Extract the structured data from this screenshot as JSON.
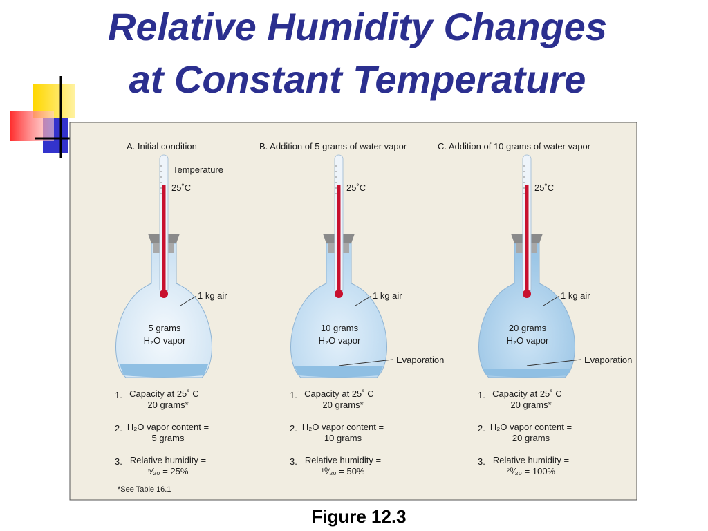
{
  "title": {
    "lines": [
      "Relative Humidity Changes",
      "at Constant Temperature"
    ]
  },
  "panels": [
    {
      "heading": "A. Initial condition",
      "thermometer_label": "Temperature",
      "temperature": "25˚C",
      "air": "1 kg air",
      "vapor": [
        "5 grams",
        "H₂O vapor"
      ],
      "steps": [
        {
          "number": "1.",
          "lines": [
            "Capacity at 25˚ C =",
            "20 grams*"
          ]
        },
        {
          "number": "2.",
          "lines": [
            "H₂O vapor content =",
            "5 grams"
          ]
        },
        {
          "number": "3.",
          "lines": [
            "Relative humidity =",
            "⁵⁄₂₀  = 25%"
          ]
        }
      ]
    },
    {
      "heading": "B. Addition of 5 grams of water vapor",
      "temperature": "25˚C",
      "air": "1 kg air",
      "vapor": [
        "10 grams",
        "H₂O vapor"
      ],
      "evaporation": "Evaporation",
      "steps": [
        {
          "number": "1.",
          "lines": [
            "Capacity at 25˚ C =",
            "20 grams*"
          ]
        },
        {
          "number": "2.",
          "lines": [
            "H₂O vapor content =",
            "10 grams"
          ]
        },
        {
          "number": "3.",
          "lines": [
            "Relative humidity =",
            "¹⁰⁄₂₀  = 50%"
          ]
        }
      ]
    },
    {
      "heading": "C. Addition of 10 grams of  water vapor",
      "temperature": "25˚C",
      "air": "1 kg air",
      "vapor": [
        "20 grams",
        "H₂O vapor"
      ],
      "evaporation": "Evaporation",
      "steps": [
        {
          "number": "1.",
          "lines": [
            "Capacity at 25˚ C =",
            "20 grams*"
          ]
        },
        {
          "number": "2.",
          "lines": [
            "H₂O vapor content =",
            "20 grams"
          ]
        },
        {
          "number": "3.",
          "lines": [
            "Relative humidity =",
            "²⁰⁄₂₀  = 100%"
          ]
        }
      ]
    }
  ],
  "footnote": "*See Table 16.1",
  "caption": "Figure 12.3"
}
